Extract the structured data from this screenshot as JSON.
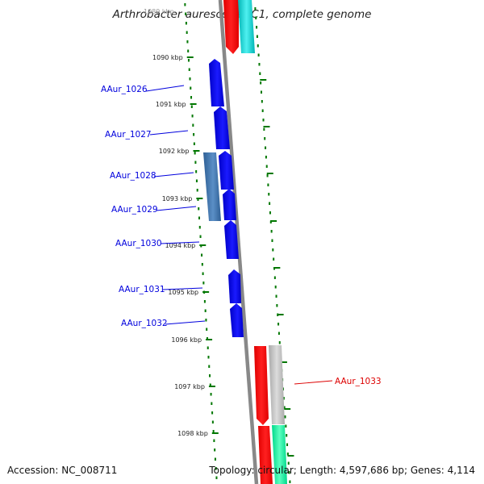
{
  "title": "Arthrobacter aurescens TC1, complete genome",
  "accession_text": "Accession: NC_008711",
  "summary_text": "Topology: circular; Length: 4,597,686 bp; Genes: 4,114",
  "ruler": {
    "ticks": [
      "1090 kbp",
      "1091 kbp",
      "1092 kbp",
      "1093 kbp",
      "1094 kbp",
      "1095 kbp",
      "1096 kbp",
      "1097 kbp",
      "1098 kbp"
    ],
    "top_partial_tick": "1089 kbp",
    "dot_color": "#007700",
    "label_color": "#222222"
  },
  "genes": [
    {
      "name": "AAur_1026",
      "label_color": "#0000dd",
      "fill": "#0000e6",
      "strand": "+"
    },
    {
      "name": "AAur_1027",
      "label_color": "#0000dd",
      "fill": "#0000e6",
      "strand": "+"
    },
    {
      "name": "AAur_1028",
      "label_color": "#0000dd",
      "fill": "#0000e6",
      "strand": "+"
    },
    {
      "name": "AAur_1029",
      "label_color": "#0000dd",
      "fill": "#0000e6",
      "strand": "+"
    },
    {
      "name": "AAur_1030",
      "label_color": "#0000dd",
      "fill": "#0000e6",
      "strand": "+"
    },
    {
      "name": "AAur_1031",
      "label_color": "#0000dd",
      "fill": "#0000e6",
      "strand": "+"
    },
    {
      "name": "AAur_1032",
      "label_color": "#0000dd",
      "fill": "#0000e6",
      "strand": "+"
    },
    {
      "name": "AAur_1033",
      "label_color": "#dd0000",
      "fill": "#ff0000",
      "strand": "-"
    }
  ],
  "feature_colors": {
    "cds_forward": "#0000e6",
    "cds_reverse": "#ff0000",
    "rna_forward": "#3a6ea5",
    "gray_track": "#bbbbbb",
    "cyan_track": "#00cccc",
    "green_track": "#00ee99",
    "backbone": "#888888"
  }
}
